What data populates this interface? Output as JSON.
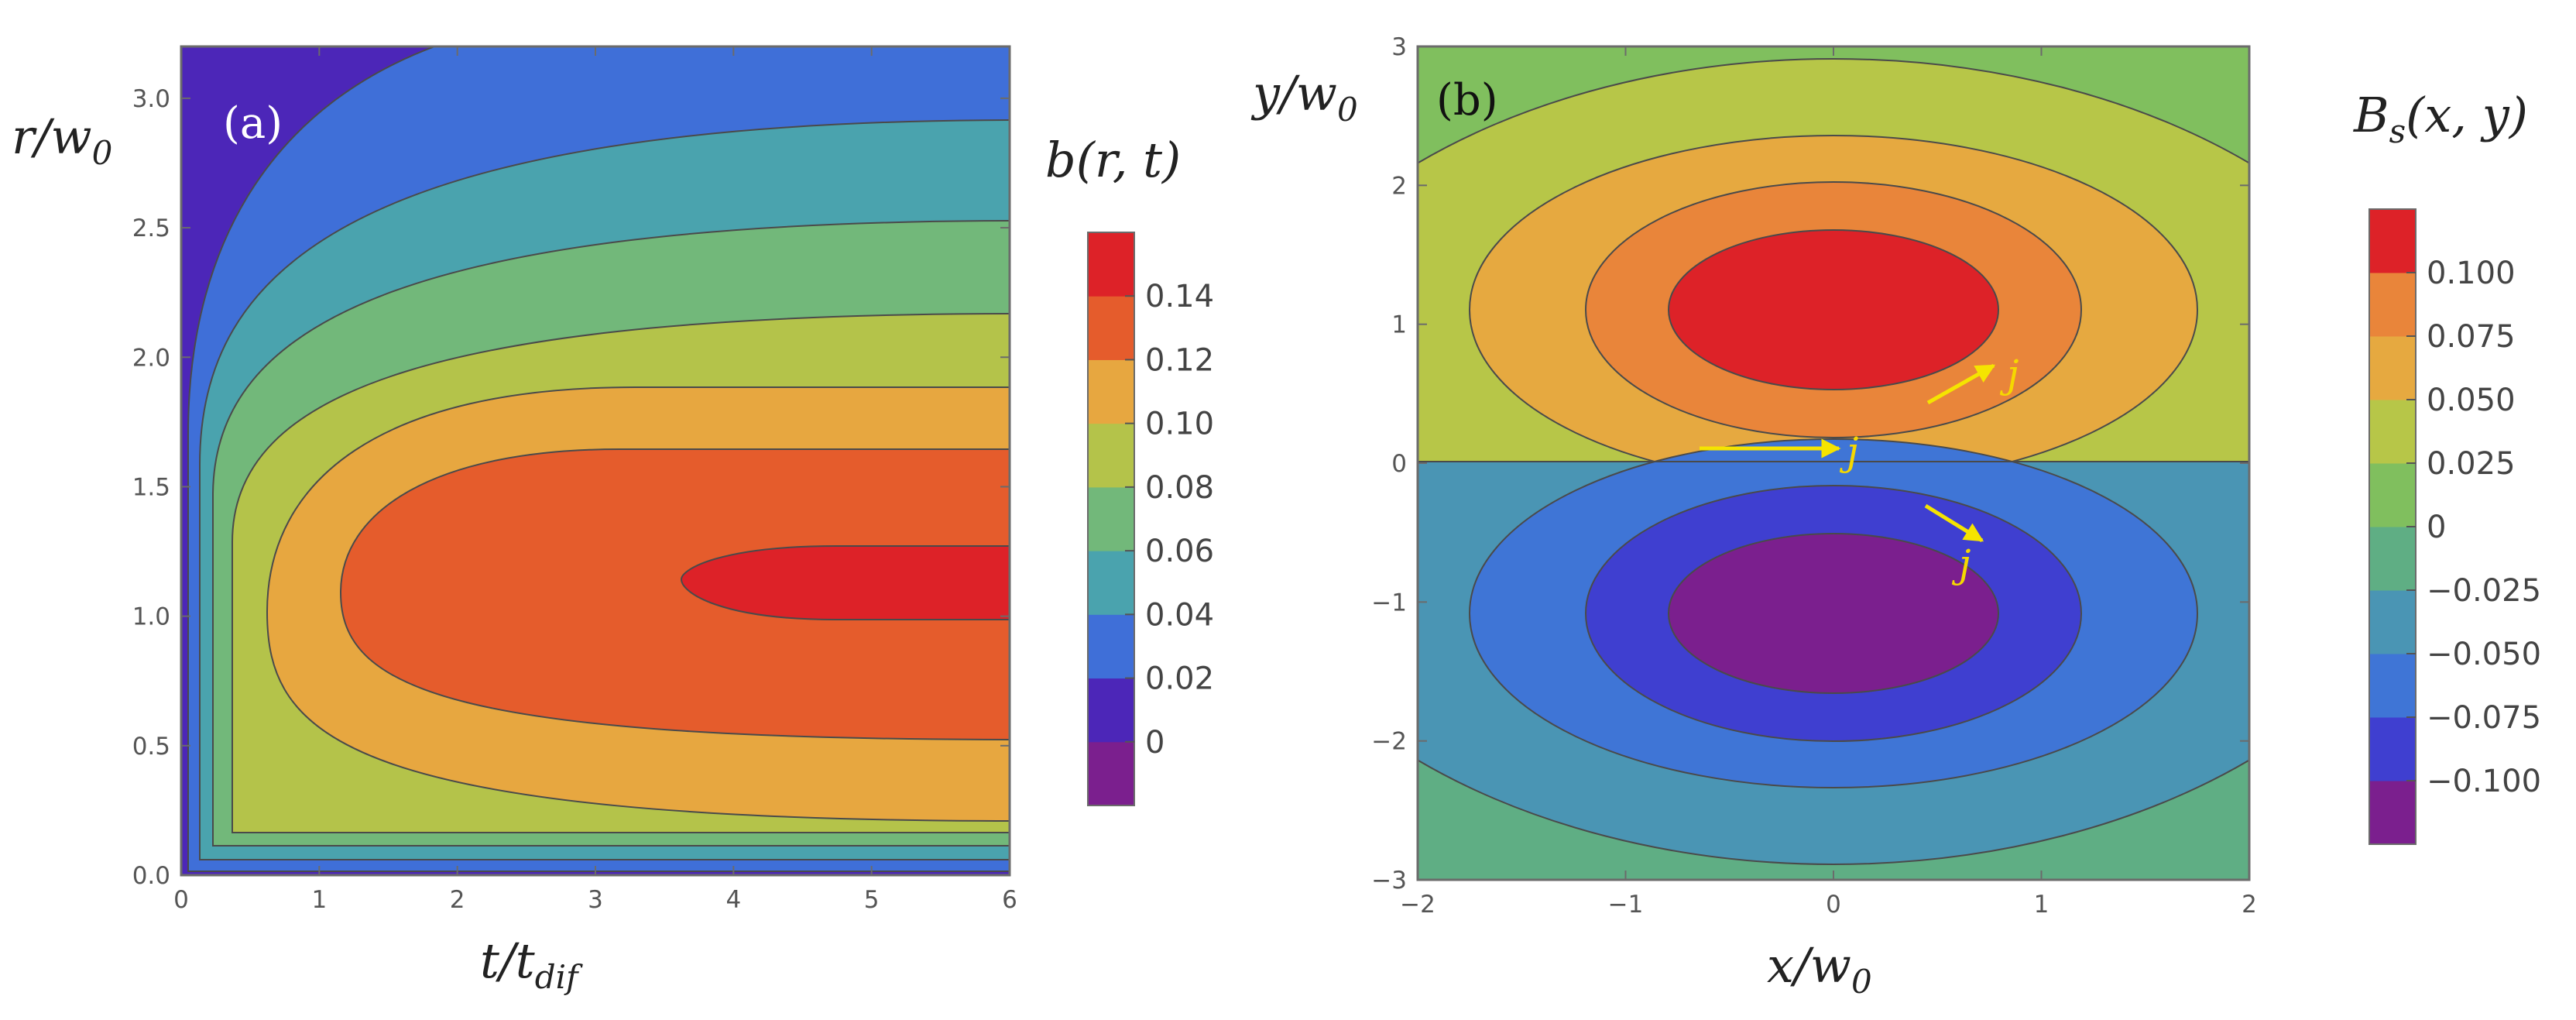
{
  "colors": {
    "frame": "#6b6b6b",
    "contour": "#4a4a4a",
    "arrow": "#f5e400",
    "a_fill": [
      "#7b1f8e",
      "#4c26b8",
      "#3f6fd8",
      "#4aa3ae",
      "#72b87a",
      "#b4c34a",
      "#e7a740",
      "#e55c2c",
      "#dd2228"
    ],
    "b_fill": [
      "#7b1f8e",
      "#3f3fd0",
      "#3f75d6",
      "#4a95b4",
      "#5fae84",
      "#80bf5e",
      "#b7c648",
      "#e6a940",
      "#e9853a",
      "#dd2228"
    ]
  },
  "chart_data": [
    {
      "type": "contour",
      "panel_label": "(a)",
      "title": "b(r,t)",
      "colorbar_label": "b(r, t)",
      "xlabel": {
        "main": "t/t",
        "sub": "dif"
      },
      "ylabel": {
        "main": "r/w",
        "sub": "0"
      },
      "xlim": [
        0,
        6
      ],
      "ylim": [
        0,
        3.2
      ],
      "xticks": [
        "0",
        "1",
        "2",
        "3",
        "4",
        "5",
        "6"
      ],
      "yticks": [
        "0.0",
        "0.5",
        "1.0",
        "1.5",
        "2.0",
        "2.5",
        "3.0"
      ],
      "contour_levels": [
        0,
        0.02,
        0.04,
        0.06,
        0.08,
        0.1,
        0.12,
        0.14
      ],
      "colorbar_ticks": [
        "0.14",
        "0.12",
        "0.10",
        "0.08",
        "0.06",
        "0.04",
        "0.02",
        "0"
      ],
      "note": "b rises with t toward a steady profile peaking near r/w0 = 1 (max about 0.15)"
    },
    {
      "type": "contour",
      "panel_label": "(b)",
      "title": "Bs(x,y)",
      "colorbar_label": {
        "main": "B",
        "sub": "s",
        "rest": "(x, y)"
      },
      "xlabel": {
        "main": "x/w",
        "sub": "0"
      },
      "ylabel": {
        "main": "y/w",
        "sub": "0"
      },
      "xlim": [
        -2,
        2
      ],
      "ylim": [
        -3,
        3
      ],
      "xticks": [
        "−2",
        "−1",
        "0",
        "1",
        "2"
      ],
      "yticks": [
        "−3",
        "−2",
        "−1",
        "0",
        "1",
        "2",
        "3"
      ],
      "contour_levels": [
        -0.1,
        -0.075,
        -0.05,
        -0.025,
        0,
        0.025,
        0.05,
        0.075,
        0.1
      ],
      "colorbar_ticks": [
        "0.100",
        "0.075",
        "0.050",
        "0.025",
        "0",
        "−0.025",
        "−0.050",
        "−0.075",
        "−0.100"
      ],
      "peaks": [
        {
          "x": 0,
          "y": 1,
          "value": 0.12
        },
        {
          "x": 0,
          "y": -1,
          "value": -0.12
        }
      ],
      "annotations": [
        "j",
        "j",
        "j"
      ],
      "note": "antisymmetric field with positive lobe above y=0 and negative lobe below; arrows j mark current direction"
    }
  ]
}
